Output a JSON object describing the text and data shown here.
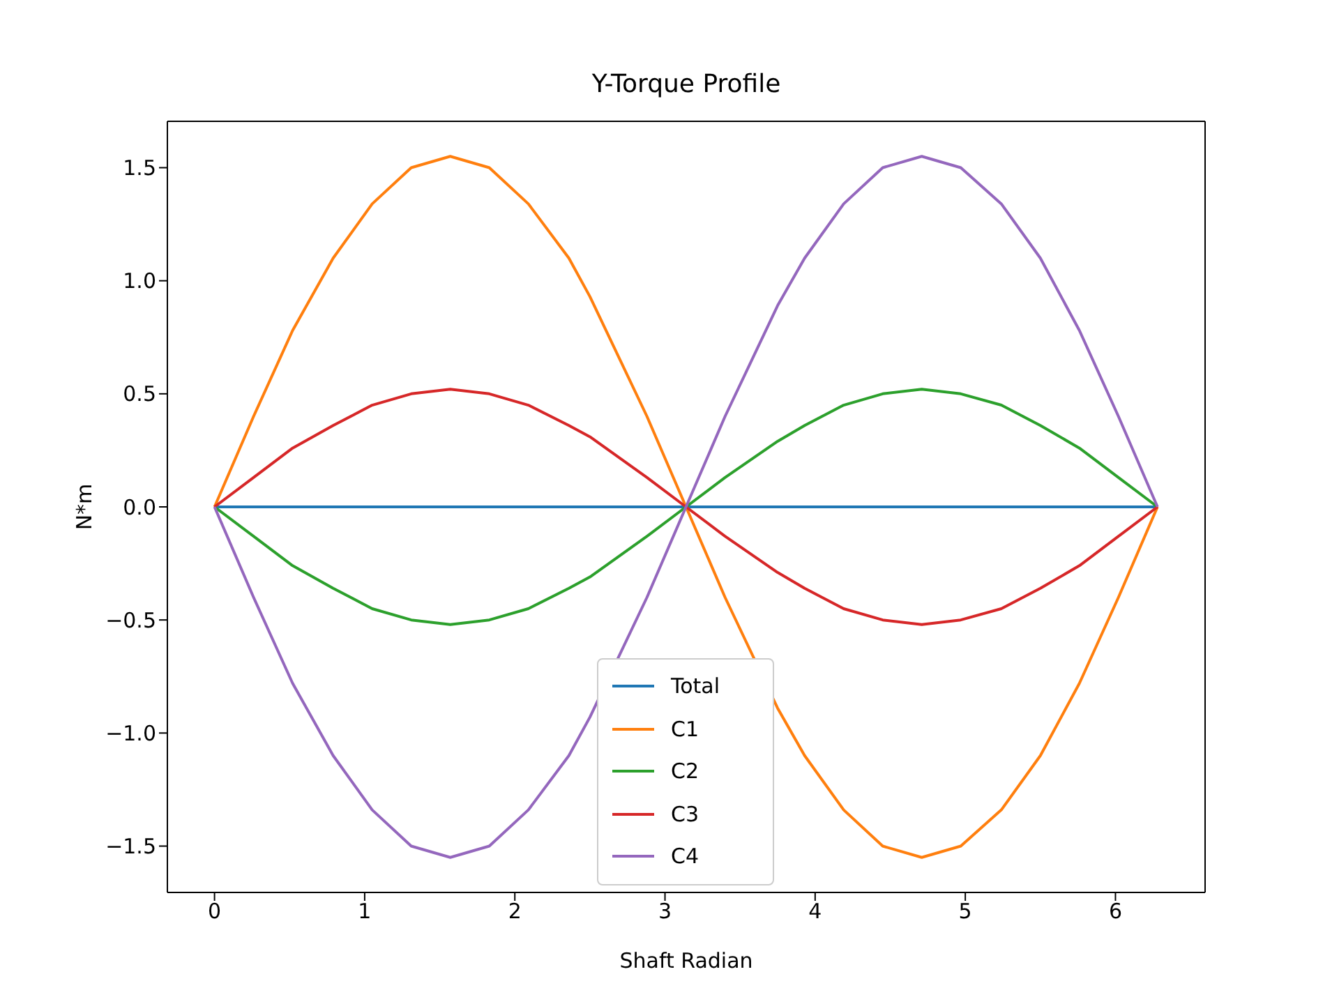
{
  "chart_data": {
    "type": "line",
    "title": "Y-Torque Profile",
    "xlabel": "Shaft Radian",
    "ylabel": "N*m",
    "x": [
      0,
      0.26,
      0.52,
      0.79,
      1.05,
      1.31,
      1.57,
      1.83,
      2.09,
      2.36,
      2.5,
      2.88,
      3.14,
      3.4,
      3.75,
      3.93,
      4.19,
      4.45,
      4.71,
      4.97,
      5.24,
      5.5,
      5.76,
      6.02,
      6.28
    ],
    "series": [
      {
        "name": "Total",
        "color": "#1f77b4",
        "values": [
          0,
          0,
          0,
          0,
          0,
          0,
          0,
          0,
          0,
          0,
          0,
          0,
          0,
          0,
          0,
          0,
          0,
          0,
          0,
          0,
          0,
          0,
          0,
          0,
          0
        ]
      },
      {
        "name": "C1",
        "color": "#ff7f0e",
        "values": [
          0,
          0.4,
          0.78,
          1.1,
          1.34,
          1.5,
          1.55,
          1.5,
          1.34,
          1.1,
          0.93,
          0.4,
          0,
          -0.4,
          -0.89,
          -1.1,
          -1.34,
          -1.5,
          -1.55,
          -1.5,
          -1.34,
          -1.1,
          -0.78,
          -0.4,
          0
        ]
      },
      {
        "name": "C2",
        "color": "#2ca02c",
        "values": [
          0,
          -0.13,
          -0.26,
          -0.36,
          -0.45,
          -0.5,
          -0.52,
          -0.5,
          -0.45,
          -0.36,
          -0.31,
          -0.13,
          0,
          0.13,
          0.29,
          0.36,
          0.45,
          0.5,
          0.52,
          0.5,
          0.45,
          0.36,
          0.26,
          0.13,
          0
        ]
      },
      {
        "name": "C3",
        "color": "#d62728",
        "values": [
          0,
          0.13,
          0.26,
          0.36,
          0.45,
          0.5,
          0.52,
          0.5,
          0.45,
          0.36,
          0.31,
          0.13,
          0,
          -0.13,
          -0.29,
          -0.36,
          -0.45,
          -0.5,
          -0.52,
          -0.5,
          -0.45,
          -0.36,
          -0.26,
          -0.13,
          0
        ]
      },
      {
        "name": "C4",
        "color": "#9467bd",
        "values": [
          0,
          -0.4,
          -0.78,
          -1.1,
          -1.34,
          -1.5,
          -1.55,
          -1.5,
          -1.34,
          -1.1,
          -0.93,
          -0.4,
          0,
          0.4,
          0.89,
          1.1,
          1.34,
          1.5,
          1.55,
          1.5,
          1.34,
          1.1,
          0.78,
          0.4,
          0
        ]
      }
    ],
    "xlim": [
      -0.314,
      6.597
    ],
    "xticks": [
      0,
      1,
      2,
      3,
      4,
      5,
      6
    ],
    "ylim": [
      -1.705,
      1.705
    ],
    "yticks": [
      {
        "value": -1.5,
        "label": "−1.5"
      },
      {
        "value": -1,
        "label": "−1.0"
      },
      {
        "value": -0.5,
        "label": "−0.5"
      },
      {
        "value": 0,
        "label": "0.0"
      },
      {
        "value": 0.5,
        "label": "0.5"
      },
      {
        "value": 1,
        "label": "1.0"
      },
      {
        "value": 1.5,
        "label": "1.5"
      }
    ],
    "grid": false,
    "legend": "bottom",
    "marker": "none",
    "line_style": "solid"
  }
}
